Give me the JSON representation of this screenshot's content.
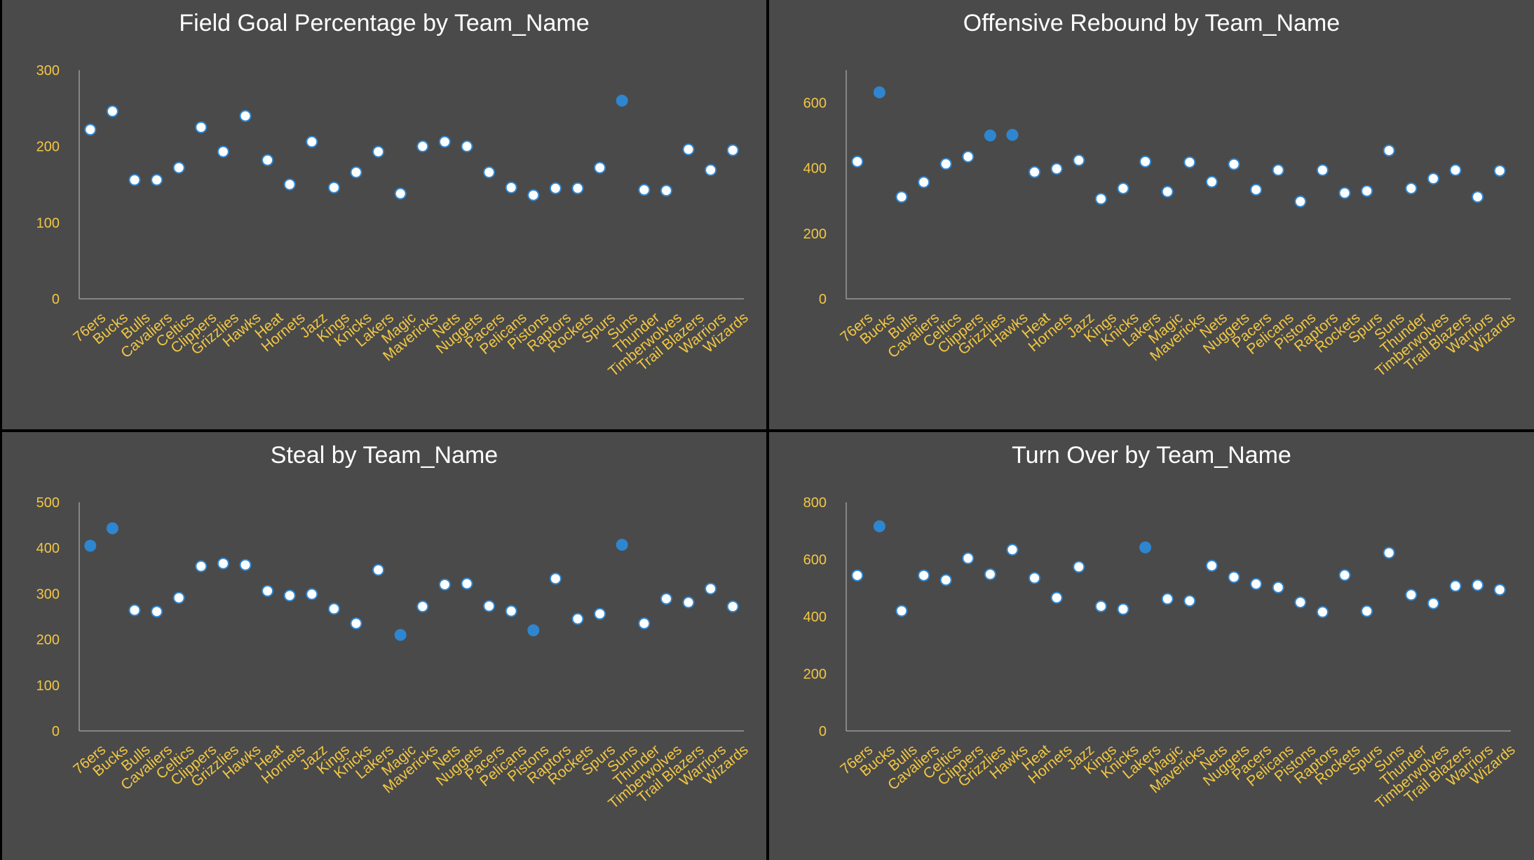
{
  "theme": {
    "panel_bg": "#4a4a4a",
    "title_color": "#ffffff",
    "label_color": "#f2c744",
    "axis_color": "#9a9a9a",
    "point_default": "#ffffff",
    "point_highlight": "#2e86d0",
    "point_stroke": "#2e86d0"
  },
  "chart_data": [
    {
      "type": "scatter",
      "title": "Field Goal Percentage by Team_Name",
      "xlabel": "",
      "ylabel": "",
      "ylim": [
        0,
        300
      ],
      "yticks": [
        "0",
        "100",
        "200",
        "300"
      ],
      "grid": false,
      "categories": [
        "76ers",
        "Bucks",
        "Bulls",
        "Cavaliers",
        "Celtics",
        "Clippers",
        "Grizzlies",
        "Hawks",
        "Heat",
        "Hornets",
        "Jazz",
        "Kings",
        "Knicks",
        "Lakers",
        "Magic",
        "Mavericks",
        "Nets",
        "Nuggets",
        "Pacers",
        "Pelicans",
        "Pistons",
        "Raptors",
        "Rockets",
        "Spurs",
        "Suns",
        "Thunder",
        "Timberwolves",
        "Trail Blazers",
        "Warriors",
        "Wizards"
      ],
      "values": [
        222,
        246,
        156,
        156,
        172,
        225,
        193,
        240,
        182,
        150,
        206,
        146,
        166,
        193,
        138,
        200,
        206,
        200,
        166,
        146,
        136,
        145,
        145,
        172,
        260,
        143,
        142,
        196,
        169,
        195
      ],
      "highlighted": [
        "Suns"
      ]
    },
    {
      "type": "scatter",
      "title": "Offensive Rebound by Team_Name",
      "xlabel": "",
      "ylabel": "",
      "ylim": [
        0,
        700
      ],
      "yticks": [
        "0",
        "200",
        "400",
        "600"
      ],
      "grid": false,
      "categories": [
        "76ers",
        "Bucks",
        "Bulls",
        "Cavaliers",
        "Celtics",
        "Clippers",
        "Grizzlies",
        "Hawks",
        "Heat",
        "Hornets",
        "Jazz",
        "Kings",
        "Knicks",
        "Lakers",
        "Magic",
        "Mavericks",
        "Nets",
        "Nuggets",
        "Pacers",
        "Pelicans",
        "Pistons",
        "Raptors",
        "Rockets",
        "Spurs",
        "Suns",
        "Thunder",
        "Timberwolves",
        "Trail Blazers",
        "Warriors",
        "Wizards"
      ],
      "values": [
        420,
        632,
        312,
        357,
        413,
        435,
        500,
        502,
        388,
        398,
        424,
        306,
        338,
        420,
        328,
        418,
        358,
        412,
        334,
        394,
        298,
        394,
        324,
        330,
        454,
        338,
        368,
        394,
        312,
        392
      ],
      "highlighted": [
        "Bucks",
        "Grizzlies",
        "Hawks"
      ]
    },
    {
      "type": "scatter",
      "title": "Steal by Team_Name",
      "xlabel": "",
      "ylabel": "",
      "ylim": [
        0,
        500
      ],
      "yticks": [
        "0",
        "100",
        "200",
        "300",
        "400",
        "500"
      ],
      "grid": false,
      "categories": [
        "76ers",
        "Bucks",
        "Bulls",
        "Cavaliers",
        "Celtics",
        "Clippers",
        "Grizzlies",
        "Hawks",
        "Heat",
        "Hornets",
        "Jazz",
        "Kings",
        "Knicks",
        "Lakers",
        "Magic",
        "Mavericks",
        "Nets",
        "Nuggets",
        "Pacers",
        "Pelicans",
        "Pistons",
        "Raptors",
        "Rockets",
        "Spurs",
        "Suns",
        "Thunder",
        "Timberwolves",
        "Trail Blazers",
        "Warriors",
        "Wizards"
      ],
      "values": [
        405,
        443,
        264,
        261,
        291,
        360,
        366,
        363,
        306,
        296,
        299,
        267,
        235,
        352,
        210,
        272,
        320,
        322,
        273,
        262,
        220,
        333,
        245,
        256,
        407,
        235,
        289,
        281,
        311,
        272
      ],
      "highlighted": [
        "76ers",
        "Bucks",
        "Magic",
        "Pistons",
        "Suns"
      ]
    },
    {
      "type": "scatter",
      "title": "Turn Over by Team_Name",
      "xlabel": "",
      "ylabel": "",
      "ylim": [
        0,
        800
      ],
      "yticks": [
        "0",
        "200",
        "400",
        "600",
        "800"
      ],
      "grid": false,
      "categories": [
        "76ers",
        "Bucks",
        "Bulls",
        "Cavaliers",
        "Celtics",
        "Clippers",
        "Grizzlies",
        "Hawks",
        "Heat",
        "Hornets",
        "Jazz",
        "Kings",
        "Knicks",
        "Lakers",
        "Magic",
        "Mavericks",
        "Nets",
        "Nuggets",
        "Pacers",
        "Pelicans",
        "Pistons",
        "Raptors",
        "Rockets",
        "Spurs",
        "Suns",
        "Thunder",
        "Timberwolves",
        "Trail Blazers",
        "Warriors",
        "Wizards"
      ],
      "values": [
        544,
        716,
        420,
        544,
        528,
        604,
        548,
        634,
        535,
        466,
        574,
        436,
        426,
        642,
        462,
        455,
        578,
        538,
        514,
        502,
        450,
        416,
        545,
        419,
        623,
        476,
        446,
        507,
        510,
        494
      ],
      "highlighted": [
        "Bucks",
        "Lakers"
      ]
    }
  ]
}
